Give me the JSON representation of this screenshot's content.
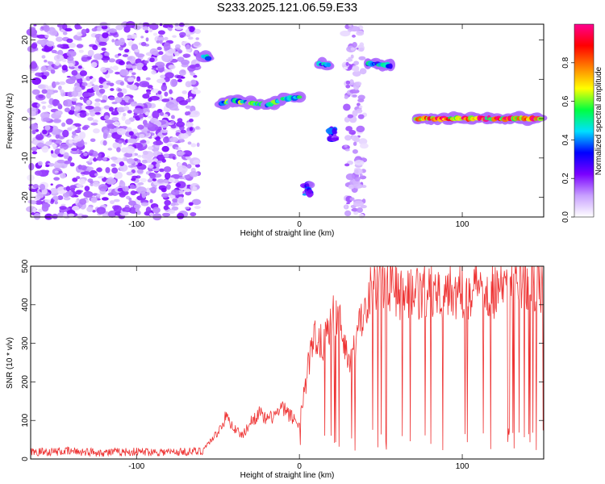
{
  "title": "S233.2025.121.06.59.E33",
  "chart_data": [
    {
      "type": "heatmap",
      "xlabel": "Height of straight line (km)",
      "ylabel": "Frequency (Hz)",
      "xlim": [
        -165,
        150
      ],
      "ylim": [
        -25,
        24
      ],
      "xticks": [
        -100,
        0,
        100
      ],
      "yticks": [
        -20,
        -10,
        0,
        10,
        20
      ],
      "colorbar": {
        "label": "Normalized spectral amplitude",
        "range": [
          0.0,
          1.0
        ],
        "ticks": [
          0.0,
          0.2,
          0.4,
          0.6,
          0.8
        ],
        "tick_labels": [
          "0.0",
          "0.2",
          "0.4",
          "0.6",
          "0.8"
        ],
        "colors": [
          "#ffffff",
          "#c8a0ff",
          "#7a00ff",
          "#0000ff",
          "#00e0ff",
          "#00ff40",
          "#ffff00",
          "#ff8000",
          "#ff0000",
          "#ff0090"
        ]
      },
      "features": [
        {
          "kind": "noise",
          "x_range": [
            -165,
            -62
          ],
          "y_range": [
            -25,
            24
          ],
          "amplitude": 0.15
        },
        {
          "kind": "line",
          "points": [
            [
              -59,
              16
            ],
            [
              -56,
              15.5
            ]
          ],
          "amplitude": 0.45
        },
        {
          "kind": "line",
          "points": [
            [
              -48,
              4
            ],
            [
              -40,
              4.5
            ],
            [
              -30,
              4
            ],
            [
              -20,
              3.5
            ],
            [
              -10,
              5
            ],
            [
              0,
              5.5
            ]
          ],
          "amplitude": 0.55
        },
        {
          "kind": "line",
          "points": [
            [
              12,
              14
            ],
            [
              18,
              13.5
            ]
          ],
          "amplitude": 0.45
        },
        {
          "kind": "line",
          "points": [
            [
              42,
              14
            ],
            [
              56,
              13.5
            ]
          ],
          "amplitude": 0.45
        },
        {
          "kind": "line",
          "points": [
            [
              72,
              0
            ],
            [
              148,
              0
            ]
          ],
          "amplitude": 0.85
        },
        {
          "kind": "blob",
          "points": [
            [
              5,
              -18
            ],
            [
              20,
              -4
            ]
          ],
          "amplitude": 0.3
        },
        {
          "kind": "column",
          "x_range": [
            28,
            40
          ],
          "y_range": [
            -25,
            24
          ],
          "amplitude": 0.12
        }
      ]
    },
    {
      "type": "line",
      "xlabel": "Height of straight line (km)",
      "ylabel": "SNR (10 * v/v)",
      "xlim": [
        -165,
        150
      ],
      "ylim": [
        0,
        500
      ],
      "xticks": [
        -100,
        0,
        100
      ],
      "yticks": [
        0,
        100,
        200,
        300,
        400,
        500
      ],
      "color": "#ee3333",
      "x": [
        -165,
        -140,
        -120,
        -100,
        -80,
        -60,
        -50,
        -45,
        -40,
        -35,
        -30,
        -25,
        -20,
        -15,
        -10,
        -5,
        0,
        5,
        10,
        15,
        20,
        25,
        30,
        35,
        40,
        45,
        50,
        55,
        60,
        70,
        80,
        90,
        100,
        110,
        120,
        130,
        140,
        150
      ],
      "y": [
        18,
        20,
        17,
        19,
        18,
        20,
        70,
        110,
        80,
        60,
        95,
        120,
        100,
        115,
        130,
        110,
        90,
        230,
        330,
        300,
        380,
        350,
        260,
        300,
        400,
        460,
        480,
        455,
        440,
        420,
        430,
        445,
        430,
        450,
        440,
        455,
        460,
        450
      ]
    }
  ]
}
